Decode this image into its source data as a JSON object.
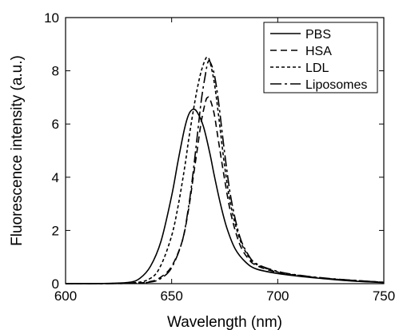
{
  "chart_data": {
    "type": "line",
    "xlabel": "Wavelength (nm)",
    "ylabel": "Fluorescence intensity (a.u.)",
    "xlim": [
      600,
      750
    ],
    "ylim": [
      0,
      10
    ],
    "xticks": [
      600,
      650,
      700,
      750
    ],
    "yticks": [
      0,
      2,
      4,
      6,
      8,
      10
    ],
    "xtick_labels": [
      "600",
      "650",
      "700",
      "750"
    ],
    "ytick_labels": [
      "0",
      "2",
      "4",
      "6",
      "8",
      "10"
    ],
    "grid": false,
    "legend_position": "top-right",
    "series": [
      {
        "name": "PBS",
        "dash": "solid",
        "x": [
          600,
          620,
          630,
          635,
          640,
          645,
          650,
          653,
          656,
          658,
          660,
          662,
          665,
          668,
          670,
          673,
          676,
          680,
          685,
          690,
          700,
          710,
          720,
          735,
          750
        ],
        "y": [
          0,
          0.01,
          0.05,
          0.2,
          0.65,
          1.6,
          3.3,
          4.6,
          5.8,
          6.35,
          6.55,
          6.45,
          5.9,
          4.9,
          4.1,
          3.0,
          2.1,
          1.3,
          0.8,
          0.55,
          0.38,
          0.28,
          0.2,
          0.1,
          0.04
        ]
      },
      {
        "name": "HSA",
        "dash": "8,5",
        "x": [
          600,
          630,
          640,
          645,
          650,
          655,
          658,
          660,
          662,
          664,
          666,
          667,
          668,
          670,
          672,
          675,
          678,
          682,
          686,
          690,
          700,
          710,
          725,
          750
        ],
        "y": [
          0,
          0.01,
          0.08,
          0.25,
          0.65,
          1.6,
          2.8,
          3.9,
          5.0,
          6.1,
          6.85,
          7.0,
          6.95,
          6.4,
          5.4,
          3.9,
          2.6,
          1.5,
          0.95,
          0.68,
          0.42,
          0.3,
          0.18,
          0.05
        ]
      },
      {
        "name": "LDL",
        "dash": "4,3",
        "x": [
          600,
          630,
          640,
          645,
          650,
          653,
          656,
          658,
          660,
          662,
          664,
          666,
          667,
          668,
          670,
          672,
          675,
          678,
          682,
          686,
          690,
          700,
          710,
          725,
          750
        ],
        "y": [
          0,
          0.02,
          0.2,
          0.7,
          1.8,
          2.9,
          4.3,
          5.4,
          6.4,
          7.3,
          8.0,
          8.45,
          8.5,
          8.35,
          7.6,
          6.4,
          4.4,
          2.9,
          1.7,
          1.05,
          0.72,
          0.44,
          0.31,
          0.18,
          0.05
        ]
      },
      {
        "name": "Liposomes",
        "dash": "14,4,3,4",
        "x": [
          600,
          630,
          640,
          645,
          650,
          655,
          658,
          660,
          662,
          664,
          666,
          667,
          668,
          670,
          672,
          675,
          678,
          682,
          686,
          690,
          700,
          710,
          725,
          750
        ],
        "y": [
          0,
          0.01,
          0.06,
          0.2,
          0.6,
          1.6,
          2.9,
          4.1,
          5.5,
          6.9,
          7.9,
          8.3,
          8.35,
          7.9,
          6.9,
          4.9,
          3.2,
          1.8,
          1.1,
          0.75,
          0.46,
          0.32,
          0.19,
          0.05
        ]
      }
    ]
  }
}
